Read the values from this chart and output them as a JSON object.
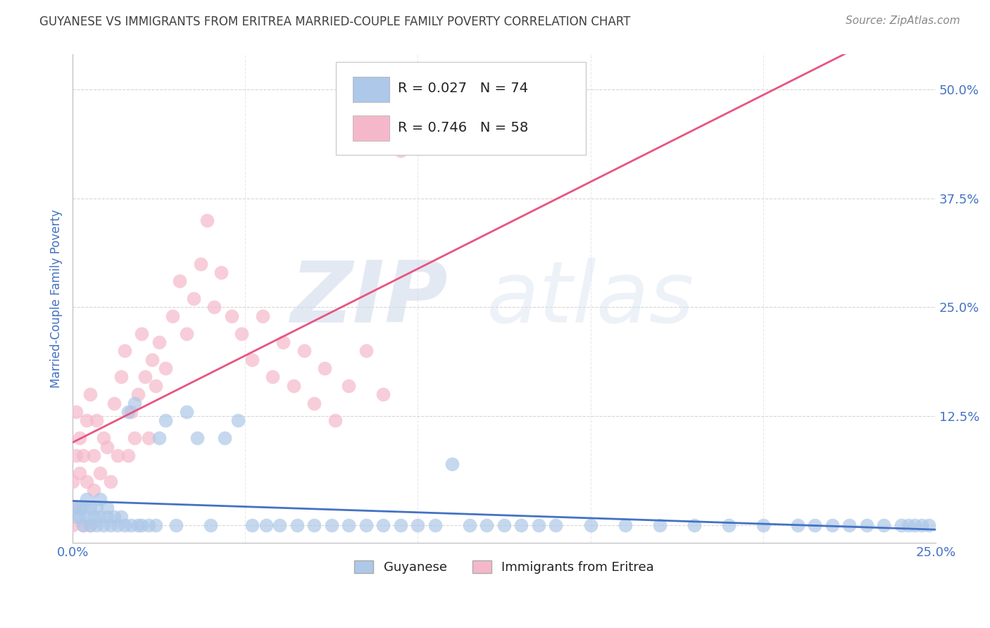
{
  "title": "GUYANESE VS IMMIGRANTS FROM ERITREA MARRIED-COUPLE FAMILY POVERTY CORRELATION CHART",
  "source": "Source: ZipAtlas.com",
  "ylabel": "Married-Couple Family Poverty",
  "watermark_zip": "ZIP",
  "watermark_atlas": "atlas",
  "xlim": [
    0.0,
    0.25
  ],
  "ylim": [
    -0.02,
    0.54
  ],
  "xticks": [
    0.0,
    0.05,
    0.1,
    0.15,
    0.2,
    0.25
  ],
  "xticklabels": [
    "0.0%",
    "",
    "",
    "",
    "",
    "25.0%"
  ],
  "yticks": [
    0.0,
    0.125,
    0.25,
    0.375,
    0.5
  ],
  "yticklabels": [
    "",
    "12.5%",
    "25.0%",
    "37.5%",
    "50.0%"
  ],
  "guyanese_color": "#adc8e8",
  "guyanese_line_color": "#4472c4",
  "eritrea_color": "#f5b8cb",
  "eritrea_line_color": "#e85480",
  "legend_R1": "R = 0.027",
  "legend_N1": "N = 74",
  "legend_R2": "R = 0.746",
  "legend_N2": "N = 58",
  "background_color": "#ffffff",
  "grid_color": "#cccccc",
  "title_color": "#404040",
  "axis_label_color": "#4472c4",
  "tick_color": "#4472c4",
  "source_color": "#888888",
  "guyanese_x": [
    0.001,
    0.001,
    0.002,
    0.002,
    0.003,
    0.003,
    0.004,
    0.004,
    0.005,
    0.005,
    0.006,
    0.007,
    0.007,
    0.008,
    0.008,
    0.009,
    0.01,
    0.01,
    0.011,
    0.012,
    0.013,
    0.014,
    0.015,
    0.016,
    0.017,
    0.018,
    0.019,
    0.02,
    0.022,
    0.024,
    0.025,
    0.027,
    0.03,
    0.033,
    0.036,
    0.04,
    0.044,
    0.048,
    0.052,
    0.056,
    0.06,
    0.065,
    0.07,
    0.075,
    0.08,
    0.085,
    0.09,
    0.095,
    0.1,
    0.105,
    0.11,
    0.115,
    0.12,
    0.125,
    0.13,
    0.135,
    0.14,
    0.15,
    0.16,
    0.17,
    0.18,
    0.19,
    0.2,
    0.21,
    0.215,
    0.22,
    0.225,
    0.23,
    0.235,
    0.24,
    0.242,
    0.244,
    0.246,
    0.248
  ],
  "guyanese_y": [
    0.01,
    0.02,
    0.01,
    0.02,
    0.0,
    0.02,
    0.01,
    0.03,
    0.0,
    0.02,
    0.01,
    0.0,
    0.02,
    0.01,
    0.03,
    0.0,
    0.01,
    0.02,
    0.0,
    0.01,
    0.0,
    0.01,
    0.0,
    0.13,
    0.0,
    0.14,
    0.0,
    0.0,
    0.0,
    0.0,
    0.1,
    0.12,
    0.0,
    0.13,
    0.1,
    0.0,
    0.1,
    0.12,
    0.0,
    0.0,
    0.0,
    0.0,
    0.0,
    0.0,
    0.0,
    0.0,
    0.0,
    0.0,
    0.0,
    0.0,
    0.07,
    0.0,
    0.0,
    0.0,
    0.0,
    0.0,
    0.0,
    0.0,
    0.0,
    0.0,
    0.0,
    0.0,
    0.0,
    0.0,
    0.0,
    0.0,
    0.0,
    0.0,
    0.0,
    0.0,
    0.0,
    0.0,
    0.0,
    0.0
  ],
  "eritrea_x": [
    0.0,
    0.0,
    0.001,
    0.001,
    0.001,
    0.002,
    0.002,
    0.003,
    0.003,
    0.004,
    0.004,
    0.005,
    0.005,
    0.006,
    0.006,
    0.007,
    0.008,
    0.009,
    0.01,
    0.011,
    0.012,
    0.013,
    0.014,
    0.015,
    0.016,
    0.017,
    0.018,
    0.019,
    0.02,
    0.021,
    0.022,
    0.023,
    0.024,
    0.025,
    0.027,
    0.029,
    0.031,
    0.033,
    0.035,
    0.037,
    0.039,
    0.041,
    0.043,
    0.046,
    0.049,
    0.052,
    0.055,
    0.058,
    0.061,
    0.064,
    0.067,
    0.07,
    0.073,
    0.076,
    0.08,
    0.085,
    0.09,
    0.095
  ],
  "eritrea_y": [
    0.0,
    0.05,
    0.08,
    0.13,
    0.02,
    0.06,
    0.1,
    0.0,
    0.08,
    0.05,
    0.12,
    0.0,
    0.15,
    0.04,
    0.08,
    0.12,
    0.06,
    0.1,
    0.09,
    0.05,
    0.14,
    0.08,
    0.17,
    0.2,
    0.08,
    0.13,
    0.1,
    0.15,
    0.22,
    0.17,
    0.1,
    0.19,
    0.16,
    0.21,
    0.18,
    0.24,
    0.28,
    0.22,
    0.26,
    0.3,
    0.35,
    0.25,
    0.29,
    0.24,
    0.22,
    0.19,
    0.24,
    0.17,
    0.21,
    0.16,
    0.2,
    0.14,
    0.18,
    0.12,
    0.16,
    0.2,
    0.15,
    0.43
  ]
}
